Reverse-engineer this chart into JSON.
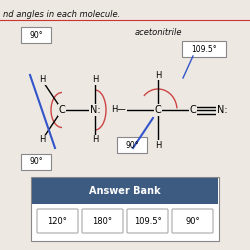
{
  "title_text": "nd angles in each molecule.",
  "acetonitrile_label": "acetonitrile",
  "answer_bank_label": "Answer Bank",
  "answer_bank_items": [
    "120°",
    "180°",
    "109.5°",
    "90°"
  ],
  "answer_bank_bg": "#3d5a80",
  "background_color": "#ede8e2",
  "red_arc_color": "#cc4444",
  "blue_line_color": "#3355cc",
  "sep_line_color": "#cc3333",
  "box_edge_color": "#888888",
  "text_color": "#111111"
}
